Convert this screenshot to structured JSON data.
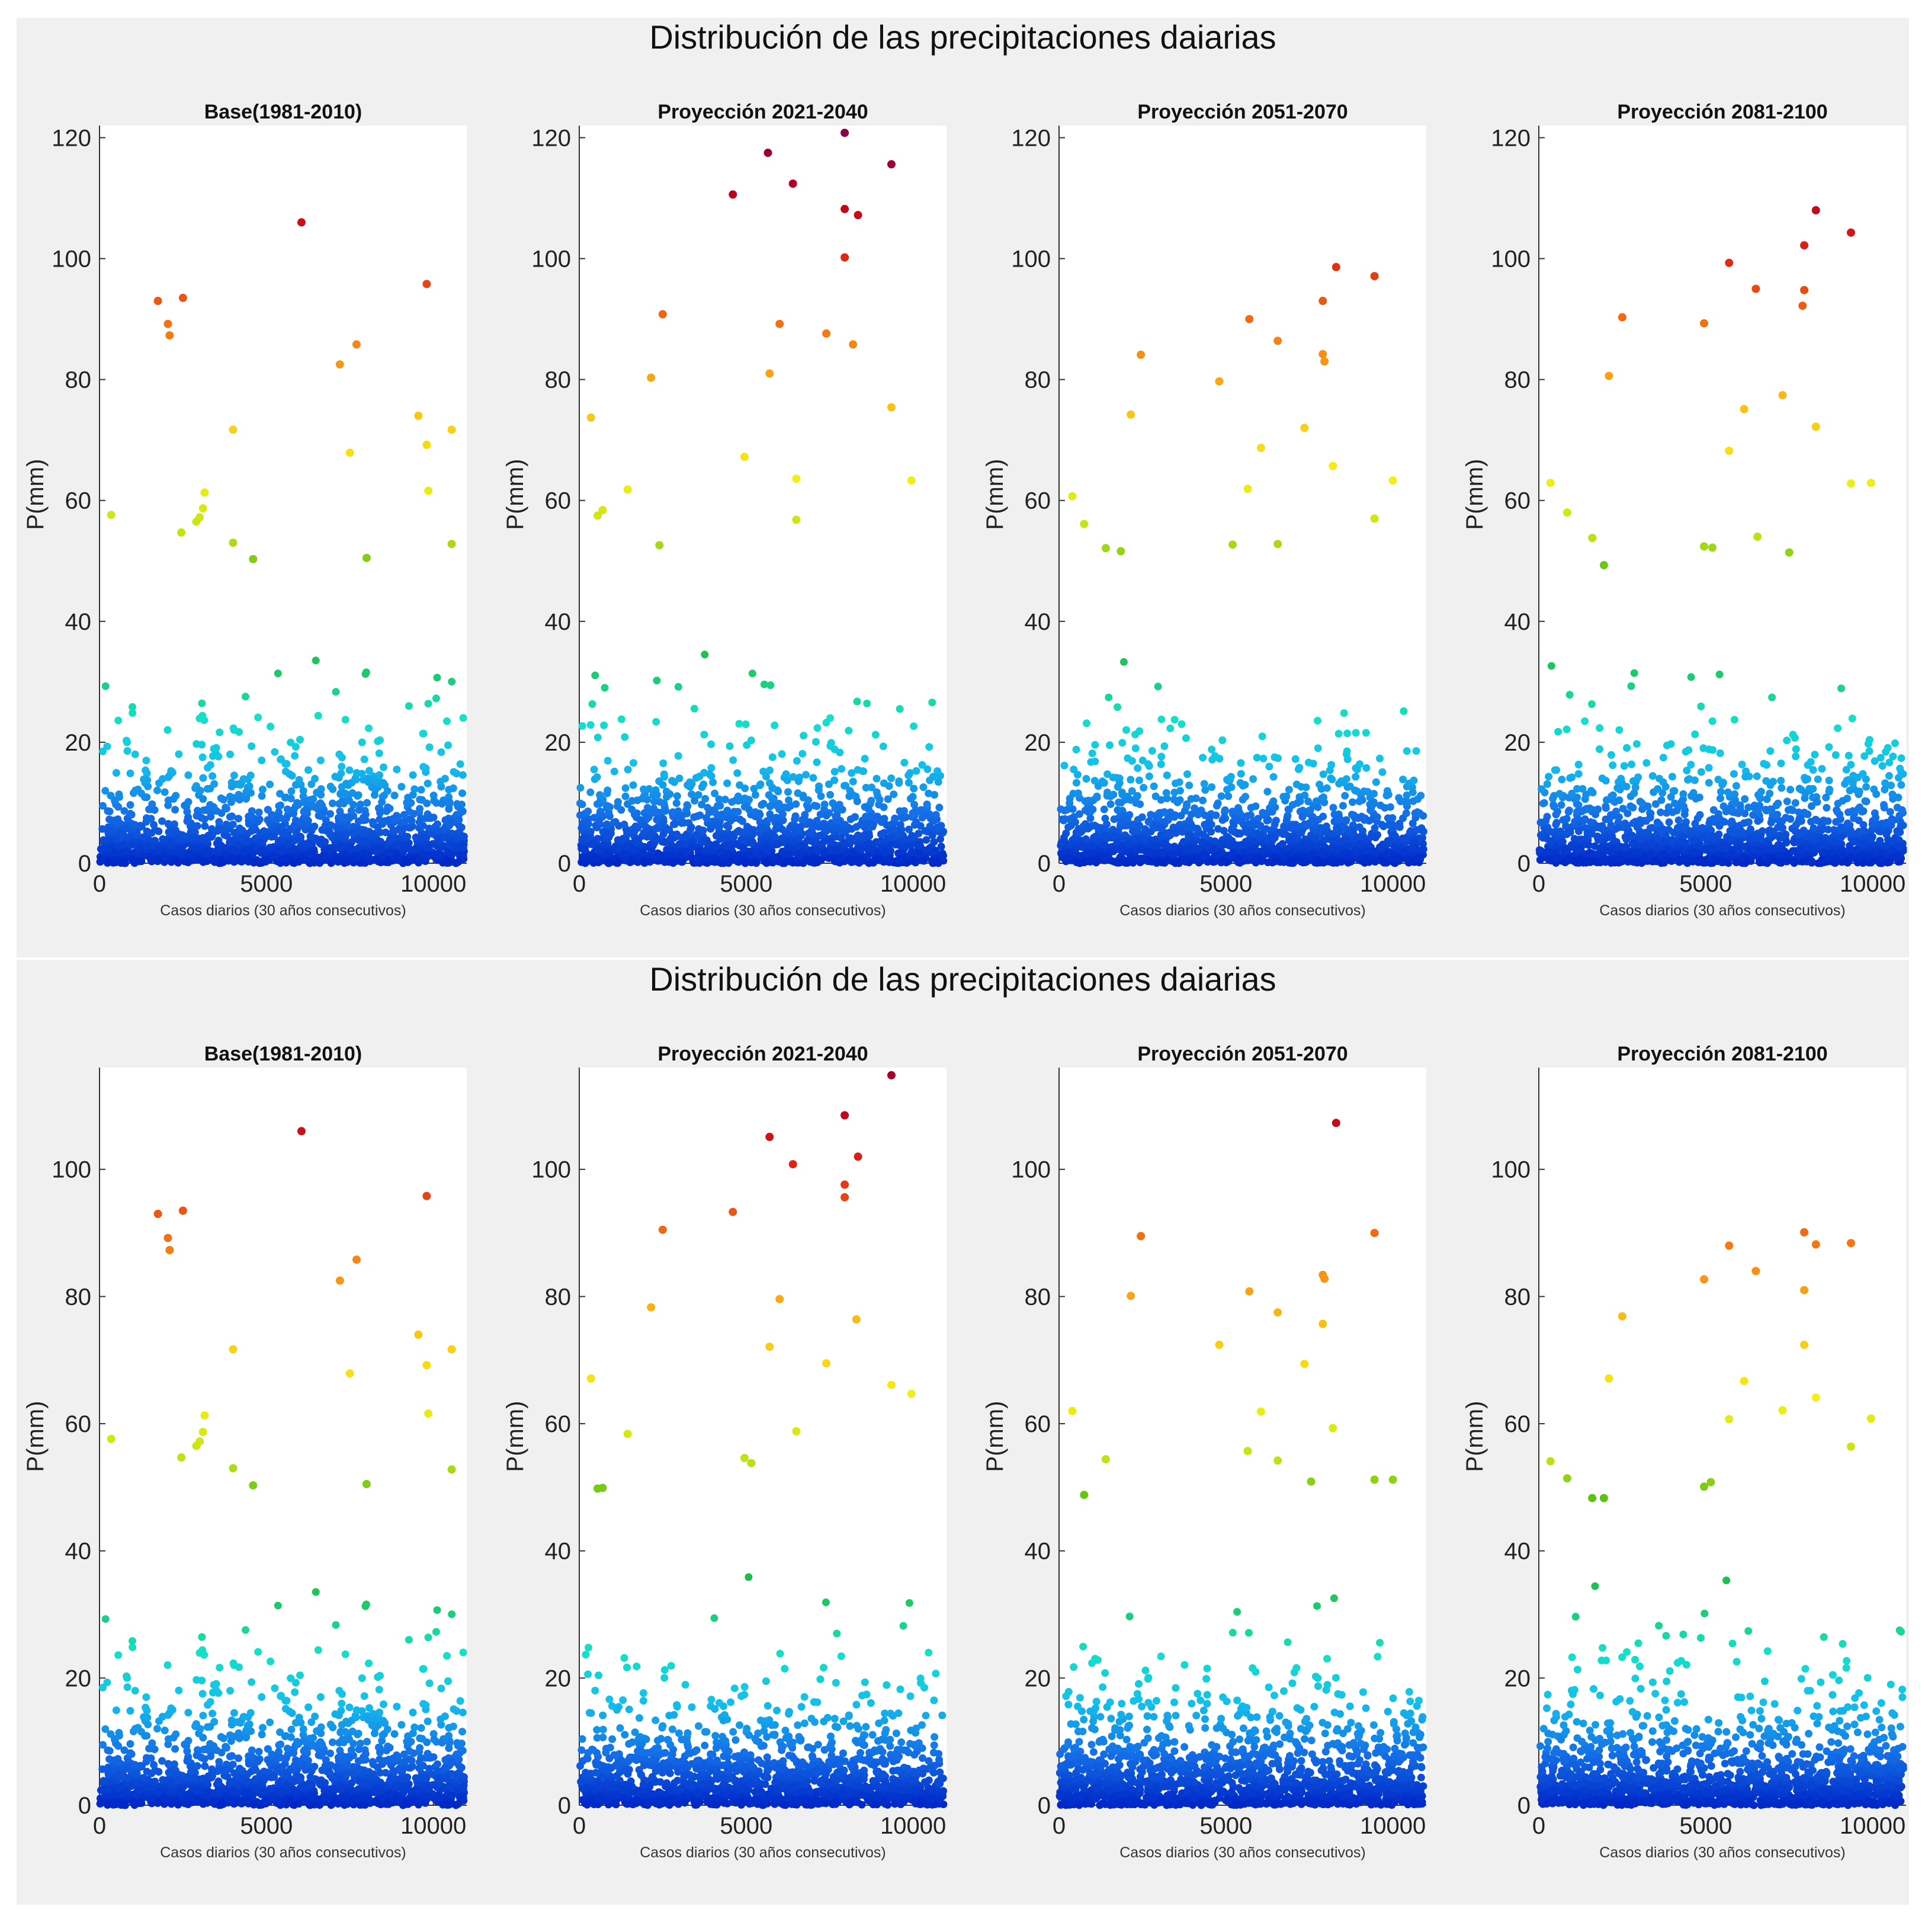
{
  "chart_data": [
    {
      "type": "scatter",
      "title": "Distribución de las precipitaciones daiarias",
      "figure": "top",
      "ylim": [
        0,
        122
      ],
      "yticks": [
        0,
        20,
        40,
        60,
        80,
        100,
        120
      ],
      "xlim": [
        0,
        11000
      ],
      "xticks": [
        0,
        5000,
        10000
      ],
      "panels": [
        {
          "title": "Base(1981-2010)",
          "xlabel": "Casos diarios (30 años consecutivos)",
          "ylabel": "P(mm)",
          "extremes": [
            {
              "x": 6050,
              "y": 106
            },
            {
              "x": 9800,
              "y": 95.8
            },
            {
              "x": 2500,
              "y": 93.5
            },
            {
              "x": 1750,
              "y": 93
            },
            {
              "x": 2050,
              "y": 89.2
            },
            {
              "x": 2100,
              "y": 87.3
            },
            {
              "x": 7700,
              "y": 85.8
            },
            {
              "x": 7200,
              "y": 82.5
            },
            {
              "x": 9550,
              "y": 74
            },
            {
              "x": 4000,
              "y": 71.7
            },
            {
              "x": 10550,
              "y": 71.7
            },
            {
              "x": 9800,
              "y": 69.2
            },
            {
              "x": 7500,
              "y": 67.9
            },
            {
              "x": 9850,
              "y": 61.6
            },
            {
              "x": 3150,
              "y": 61.3
            },
            {
              "x": 3100,
              "y": 58.7
            },
            {
              "x": 3000,
              "y": 57.2
            },
            {
              "x": 2900,
              "y": 56.5
            },
            {
              "x": 350,
              "y": 57.6
            },
            {
              "x": 2450,
              "y": 54.7
            },
            {
              "x": 4000,
              "y": 53
            },
            {
              "x": 10550,
              "y": 52.8
            },
            {
              "x": 8000,
              "y": 50.5
            },
            {
              "x": 4600,
              "y": 50.3
            }
          ],
          "seed": 11
        },
        {
          "title": "Proyección 2021-2040",
          "xlabel": "Casos diarios (30 años consecutivos)",
          "ylabel": "P(mm)",
          "extremes": [
            {
              "x": 7950,
              "y": 120.8
            },
            {
              "x": 5650,
              "y": 117.5
            },
            {
              "x": 9350,
              "y": 115.6
            },
            {
              "x": 6400,
              "y": 112.4
            },
            {
              "x": 4600,
              "y": 110.6
            },
            {
              "x": 7950,
              "y": 108.2
            },
            {
              "x": 8350,
              "y": 107.2
            },
            {
              "x": 7950,
              "y": 100.2
            },
            {
              "x": 2500,
              "y": 90.8
            },
            {
              "x": 6000,
              "y": 89.2
            },
            {
              "x": 7400,
              "y": 87.6
            },
            {
              "x": 8200,
              "y": 85.8
            },
            {
              "x": 5700,
              "y": 81
            },
            {
              "x": 2150,
              "y": 80.3
            },
            {
              "x": 9350,
              "y": 75.4
            },
            {
              "x": 350,
              "y": 73.7
            },
            {
              "x": 4950,
              "y": 67.2
            },
            {
              "x": 6500,
              "y": 63.6
            },
            {
              "x": 9950,
              "y": 63.3
            },
            {
              "x": 1450,
              "y": 61.8
            },
            {
              "x": 700,
              "y": 58.4
            },
            {
              "x": 550,
              "y": 57.5
            },
            {
              "x": 6500,
              "y": 56.8
            },
            {
              "x": 2400,
              "y": 52.6
            }
          ],
          "seed": 23
        },
        {
          "title": "Proyección 2051-2070",
          "xlabel": "Casos diarios (30 años consecutivos)",
          "ylabel": "P(mm)",
          "extremes": [
            {
              "x": 8300,
              "y": 98.6
            },
            {
              "x": 9450,
              "y": 97.1
            },
            {
              "x": 7900,
              "y": 93
            },
            {
              "x": 5700,
              "y": 90
            },
            {
              "x": 6550,
              "y": 86.4
            },
            {
              "x": 7900,
              "y": 84.2
            },
            {
              "x": 2450,
              "y": 84.1
            },
            {
              "x": 7950,
              "y": 83
            },
            {
              "x": 4800,
              "y": 79.7
            },
            {
              "x": 2150,
              "y": 74.2
            },
            {
              "x": 7350,
              "y": 72
            },
            {
              "x": 6050,
              "y": 68.7
            },
            {
              "x": 8200,
              "y": 65.7
            },
            {
              "x": 10000,
              "y": 63.3
            },
            {
              "x": 5650,
              "y": 61.9
            },
            {
              "x": 400,
              "y": 60.7
            },
            {
              "x": 9450,
              "y": 57
            },
            {
              "x": 750,
              "y": 56.1
            },
            {
              "x": 5200,
              "y": 52.7
            },
            {
              "x": 6550,
              "y": 52.8
            },
            {
              "x": 1400,
              "y": 52.1
            },
            {
              "x": 1850,
              "y": 51.6
            }
          ],
          "seed": 37
        },
        {
          "title": "Proyección 2081-2100",
          "xlabel": "Casos diarios (30 años consecutivos)",
          "ylabel": "P(mm)",
          "extremes": [
            {
              "x": 8300,
              "y": 108
            },
            {
              "x": 9350,
              "y": 104.3
            },
            {
              "x": 7950,
              "y": 102.2
            },
            {
              "x": 5700,
              "y": 99.3
            },
            {
              "x": 6500,
              "y": 95
            },
            {
              "x": 7950,
              "y": 94.8
            },
            {
              "x": 7900,
              "y": 92.2
            },
            {
              "x": 2500,
              "y": 90.3
            },
            {
              "x": 4950,
              "y": 89.3
            },
            {
              "x": 2100,
              "y": 80.6
            },
            {
              "x": 7300,
              "y": 77.4
            },
            {
              "x": 6150,
              "y": 75.1
            },
            {
              "x": 8300,
              "y": 72.2
            },
            {
              "x": 5700,
              "y": 68.2
            },
            {
              "x": 350,
              "y": 62.9
            },
            {
              "x": 9350,
              "y": 62.8
            },
            {
              "x": 9950,
              "y": 62.9
            },
            {
              "x": 850,
              "y": 58
            },
            {
              "x": 1600,
              "y": 53.8
            },
            {
              "x": 6550,
              "y": 54
            },
            {
              "x": 4950,
              "y": 52.4
            },
            {
              "x": 5200,
              "y": 52.2
            },
            {
              "x": 7500,
              "y": 51.4
            },
            {
              "x": 1950,
              "y": 49.3
            }
          ],
          "seed": 41
        }
      ]
    },
    {
      "type": "scatter",
      "title": "Distribución de las precipitaciones daiarias",
      "figure": "bottom",
      "ylim": [
        0,
        116
      ],
      "yticks": [
        0,
        20,
        40,
        60,
        80,
        100
      ],
      "xlim": [
        0,
        11000
      ],
      "xticks": [
        0,
        5000,
        10000
      ],
      "panels": [
        {
          "title": "Base(1981-2010)",
          "xlabel": "Casos diarios (30 años consecutivos)",
          "ylabel": "P(mm)",
          "extremes": [
            {
              "x": 6050,
              "y": 106
            },
            {
              "x": 9800,
              "y": 95.8
            },
            {
              "x": 2500,
              "y": 93.5
            },
            {
              "x": 1750,
              "y": 93
            },
            {
              "x": 2050,
              "y": 89.2
            },
            {
              "x": 2100,
              "y": 87.3
            },
            {
              "x": 7700,
              "y": 85.8
            },
            {
              "x": 7200,
              "y": 82.5
            },
            {
              "x": 9550,
              "y": 74
            },
            {
              "x": 4000,
              "y": 71.7
            },
            {
              "x": 10550,
              "y": 71.7
            },
            {
              "x": 9800,
              "y": 69.2
            },
            {
              "x": 7500,
              "y": 67.9
            },
            {
              "x": 9850,
              "y": 61.6
            },
            {
              "x": 3150,
              "y": 61.3
            },
            {
              "x": 3100,
              "y": 58.7
            },
            {
              "x": 3000,
              "y": 57.2
            },
            {
              "x": 2900,
              "y": 56.5
            },
            {
              "x": 350,
              "y": 57.6
            },
            {
              "x": 2450,
              "y": 54.7
            },
            {
              "x": 4000,
              "y": 53
            },
            {
              "x": 10550,
              "y": 52.8
            },
            {
              "x": 8000,
              "y": 50.5
            },
            {
              "x": 4600,
              "y": 50.3
            }
          ],
          "seed": 11
        },
        {
          "title": "Proyección 2021-2040",
          "xlabel": "Casos diarios (30 años consecutivos)",
          "ylabel": "P(mm)",
          "extremes": [
            {
              "x": 9350,
              "y": 114.8
            },
            {
              "x": 7950,
              "y": 108.5
            },
            {
              "x": 5700,
              "y": 105.1
            },
            {
              "x": 8350,
              "y": 102
            },
            {
              "x": 6400,
              "y": 100.8
            },
            {
              "x": 7950,
              "y": 97.6
            },
            {
              "x": 7950,
              "y": 95.6
            },
            {
              "x": 4600,
              "y": 93.3
            },
            {
              "x": 2500,
              "y": 90.5
            },
            {
              "x": 6000,
              "y": 79.6
            },
            {
              "x": 2150,
              "y": 78.3
            },
            {
              "x": 8300,
              "y": 76.4
            },
            {
              "x": 5700,
              "y": 72.1
            },
            {
              "x": 7400,
              "y": 69.5
            },
            {
              "x": 350,
              "y": 67.1
            },
            {
              "x": 9350,
              "y": 66.1
            },
            {
              "x": 9950,
              "y": 64.7
            },
            {
              "x": 6500,
              "y": 58.8
            },
            {
              "x": 1450,
              "y": 58.4
            },
            {
              "x": 4950,
              "y": 54.6
            },
            {
              "x": 5150,
              "y": 53.8
            },
            {
              "x": 700,
              "y": 49.9
            },
            {
              "x": 550,
              "y": 49.8
            }
          ],
          "seed": 53
        },
        {
          "title": "Proyección 2051-2070",
          "xlabel": "Casos diarios (30 años consecutivos)",
          "ylabel": "P(mm)",
          "extremes": [
            {
              "x": 8300,
              "y": 107.3
            },
            {
              "x": 9450,
              "y": 90
            },
            {
              "x": 2450,
              "y": 89.5
            },
            {
              "x": 7900,
              "y": 83.4
            },
            {
              "x": 7950,
              "y": 82.8
            },
            {
              "x": 5700,
              "y": 80.8
            },
            {
              "x": 2150,
              "y": 80.1
            },
            {
              "x": 6550,
              "y": 77.5
            },
            {
              "x": 7900,
              "y": 75.7
            },
            {
              "x": 4800,
              "y": 72.4
            },
            {
              "x": 7350,
              "y": 69.4
            },
            {
              "x": 400,
              "y": 62
            },
            {
              "x": 6050,
              "y": 61.9
            },
            {
              "x": 8200,
              "y": 59.3
            },
            {
              "x": 5650,
              "y": 55.7
            },
            {
              "x": 1400,
              "y": 54.4
            },
            {
              "x": 6550,
              "y": 54.2
            },
            {
              "x": 9450,
              "y": 51.2
            },
            {
              "x": 10000,
              "y": 51.2
            },
            {
              "x": 7550,
              "y": 50.9
            },
            {
              "x": 750,
              "y": 48.8
            }
          ],
          "seed": 67
        },
        {
          "title": "Proyección 2081-2100",
          "xlabel": "Casos diarios (30 años consecutivos)",
          "ylabel": "P(mm)",
          "extremes": [
            {
              "x": 7950,
              "y": 90.1
            },
            {
              "x": 9350,
              "y": 88.4
            },
            {
              "x": 8300,
              "y": 88.2
            },
            {
              "x": 5700,
              "y": 88
            },
            {
              "x": 6500,
              "y": 84
            },
            {
              "x": 4950,
              "y": 82.7
            },
            {
              "x": 7950,
              "y": 81
            },
            {
              "x": 2500,
              "y": 76.9
            },
            {
              "x": 7950,
              "y": 72.4
            },
            {
              "x": 2100,
              "y": 67.1
            },
            {
              "x": 6150,
              "y": 66.7
            },
            {
              "x": 8300,
              "y": 64.1
            },
            {
              "x": 7300,
              "y": 62.1
            },
            {
              "x": 9950,
              "y": 60.8
            },
            {
              "x": 5700,
              "y": 60.7
            },
            {
              "x": 9350,
              "y": 56.4
            },
            {
              "x": 350,
              "y": 54.1
            },
            {
              "x": 850,
              "y": 51.4
            },
            {
              "x": 5150,
              "y": 50.8
            },
            {
              "x": 4950,
              "y": 50.1
            },
            {
              "x": 1600,
              "y": 48.3
            },
            {
              "x": 1950,
              "y": 48.3
            }
          ],
          "seed": 79
        }
      ]
    }
  ]
}
